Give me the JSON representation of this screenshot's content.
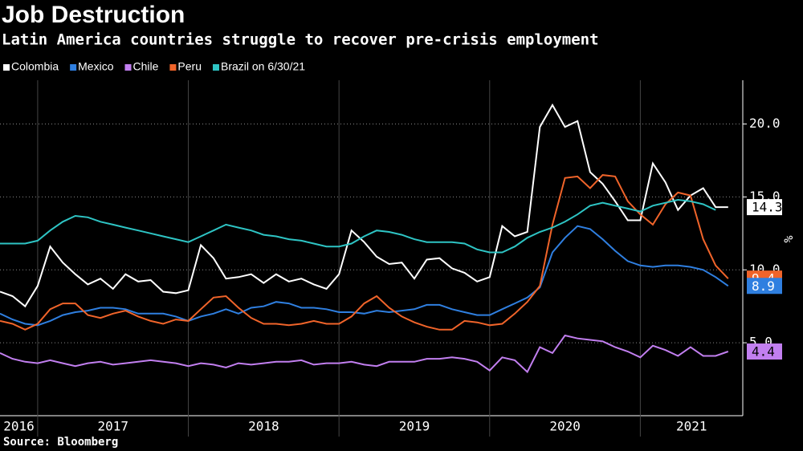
{
  "chart_data": {
    "type": "line",
    "title": "Job Destruction",
    "subtitle": "Latin America countries struggle to recover pre-crisis employment",
    "y_label": "%",
    "source": "Source: Bloomberg",
    "x": [
      2016.75,
      2016.833,
      2016.917,
      2017,
      2017.083,
      2017.167,
      2017.25,
      2017.333,
      2017.417,
      2017.5,
      2017.583,
      2017.667,
      2017.75,
      2017.833,
      2017.917,
      2018,
      2018.083,
      2018.167,
      2018.25,
      2018.333,
      2018.417,
      2018.5,
      2018.583,
      2018.667,
      2018.75,
      2018.833,
      2018.917,
      2019,
      2019.083,
      2019.167,
      2019.25,
      2019.333,
      2019.417,
      2019.5,
      2019.583,
      2019.667,
      2019.75,
      2019.833,
      2019.917,
      2020,
      2020.083,
      2020.167,
      2020.25,
      2020.333,
      2020.417,
      2020.5,
      2020.583,
      2020.667,
      2020.75,
      2020.833,
      2020.917,
      2021,
      2021.083,
      2021.167,
      2021.25,
      2021.333,
      2021.417,
      2021.5,
      2021.583
    ],
    "xlim": [
      2016.75,
      2021.68
    ],
    "xticks": [
      2016,
      2017,
      2018,
      2019,
      2020,
      2021
    ],
    "ylim": [
      0,
      23
    ],
    "yticks": [
      {
        "value": 5,
        "label": "5.0"
      },
      {
        "value": 10,
        "label": "10.0"
      },
      {
        "value": 15,
        "label": "15.0"
      },
      {
        "value": 20,
        "label": "20.0"
      }
    ],
    "grid": true,
    "series": [
      {
        "name": "Colombia",
        "color": "#ffffff",
        "last_label": true,
        "values": [
          8.5,
          8.2,
          7.5,
          8.9,
          11.6,
          10.5,
          9.7,
          9.0,
          9.4,
          8.7,
          9.7,
          9.2,
          9.3,
          8.5,
          8.4,
          8.6,
          11.7,
          10.8,
          9.4,
          9.5,
          9.7,
          9.1,
          9.7,
          9.2,
          9.4,
          9.0,
          8.7,
          9.7,
          12.7,
          11.9,
          10.9,
          10.4,
          10.5,
          9.4,
          10.7,
          10.8,
          10.1,
          9.8,
          9.2,
          9.5,
          13.0,
          12.3,
          12.6,
          19.8,
          21.3,
          19.8,
          20.2,
          16.7,
          15.9,
          14.7,
          13.4,
          13.4,
          17.3,
          16.0,
          14.1,
          15.1,
          15.6,
          14.3,
          14.3
        ]
      },
      {
        "name": "Mexico",
        "color": "#2f7fe0",
        "last_label": true,
        "values": [
          7.0,
          6.6,
          6.3,
          6.2,
          6.5,
          6.9,
          7.1,
          7.2,
          7.4,
          7.4,
          7.3,
          7.0,
          7.0,
          7.0,
          6.8,
          6.5,
          6.8,
          7.0,
          7.3,
          7.0,
          7.4,
          7.5,
          7.8,
          7.7,
          7.4,
          7.4,
          7.3,
          7.1,
          7.1,
          7.0,
          7.2,
          7.1,
          7.2,
          7.3,
          7.6,
          7.6,
          7.3,
          7.1,
          6.9,
          6.9,
          7.3,
          7.7,
          8.1,
          8.8,
          11.2,
          12.2,
          13.0,
          12.8,
          12.1,
          11.3,
          10.6,
          10.3,
          10.2,
          10.3,
          10.3,
          10.2,
          10.0,
          9.5,
          8.9
        ]
      },
      {
        "name": "Chile",
        "color": "#c27ff0",
        "last_label": true,
        "values": [
          4.3,
          3.9,
          3.7,
          3.6,
          3.8,
          3.6,
          3.4,
          3.6,
          3.7,
          3.5,
          3.6,
          3.7,
          3.8,
          3.7,
          3.6,
          3.4,
          3.6,
          3.5,
          3.3,
          3.6,
          3.5,
          3.6,
          3.7,
          3.7,
          3.8,
          3.5,
          3.6,
          3.6,
          3.7,
          3.5,
          3.4,
          3.7,
          3.7,
          3.7,
          3.9,
          3.9,
          4.0,
          3.9,
          3.7,
          3.1,
          4.0,
          3.8,
          3.0,
          4.7,
          4.3,
          5.5,
          5.3,
          5.2,
          5.1,
          4.7,
          4.4,
          4.0,
          4.8,
          4.5,
          4.1,
          4.7,
          4.1,
          4.1,
          4.4
        ]
      },
      {
        "name": "Peru",
        "color": "#f0642a",
        "last_label": true,
        "values": [
          6.5,
          6.3,
          5.9,
          6.3,
          7.3,
          7.7,
          7.7,
          6.9,
          6.7,
          7.0,
          7.2,
          6.8,
          6.5,
          6.3,
          6.6,
          6.5,
          7.3,
          8.1,
          8.2,
          7.4,
          6.7,
          6.3,
          6.3,
          6.2,
          6.3,
          6.5,
          6.3,
          6.3,
          6.8,
          7.7,
          8.2,
          7.4,
          6.8,
          6.4,
          6.1,
          5.9,
          5.9,
          6.5,
          6.4,
          6.2,
          6.3,
          7.0,
          7.8,
          8.9,
          13.1,
          16.3,
          16.4,
          15.6,
          16.5,
          16.4,
          14.7,
          13.8,
          13.1,
          14.5,
          15.3,
          15.1,
          12.1,
          10.3,
          9.4
        ]
      },
      {
        "name": "Brazil on 6/30/21",
        "color": "#2ec4c4",
        "last_label": false,
        "values": [
          11.8,
          11.8,
          11.8,
          12.0,
          12.7,
          13.3,
          13.7,
          13.6,
          13.3,
          13.1,
          12.9,
          12.7,
          12.5,
          12.3,
          12.1,
          11.9,
          12.3,
          12.7,
          13.1,
          12.9,
          12.7,
          12.4,
          12.3,
          12.1,
          12.0,
          11.8,
          11.6,
          11.6,
          11.8,
          12.3,
          12.7,
          12.6,
          12.4,
          12.1,
          11.9,
          11.9,
          11.9,
          11.8,
          11.4,
          11.2,
          11.2,
          11.6,
          12.2,
          12.6,
          12.9,
          13.3,
          13.8,
          14.4,
          14.6,
          14.4,
          14.2,
          14.0,
          14.4,
          14.6,
          14.8,
          14.7,
          14.5,
          14.1,
          null
        ]
      }
    ]
  }
}
